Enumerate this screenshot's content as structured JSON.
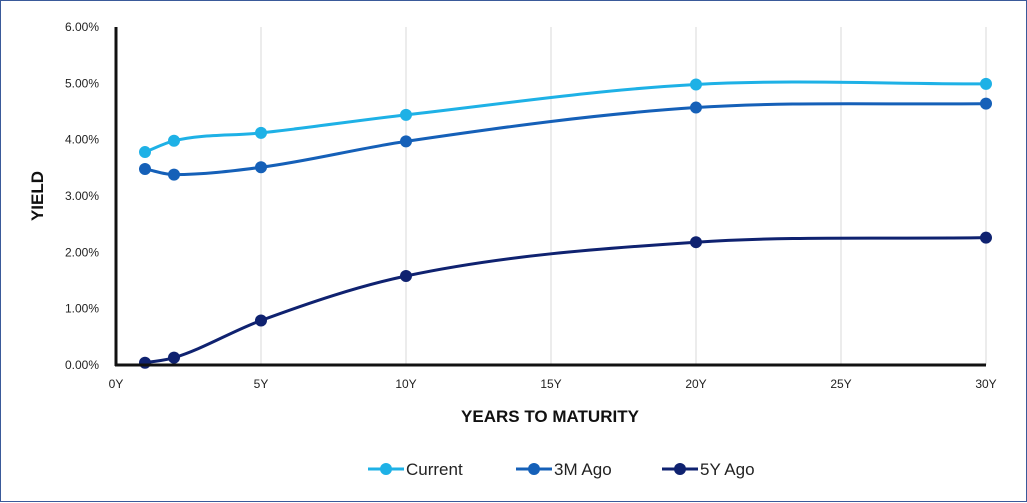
{
  "chart_data": {
    "type": "line",
    "xlabel": "YEARS TO MATURITY",
    "ylabel": "YIELD",
    "xlim": [
      0,
      30
    ],
    "ylim": [
      0,
      6
    ],
    "x_ticks": [
      0,
      5,
      10,
      15,
      20,
      25,
      30
    ],
    "x_tick_labels": [
      "0Y",
      "5Y",
      "10Y",
      "15Y",
      "20Y",
      "25Y",
      "30Y"
    ],
    "y_ticks": [
      0,
      1,
      2,
      3,
      4,
      5,
      6
    ],
    "y_tick_labels": [
      "0.00%",
      "1.00%",
      "2.00%",
      "3.00%",
      "4.00%",
      "5.00%",
      "6.00%"
    ],
    "grid": "vertical",
    "legend_position": "bottom",
    "x": [
      1,
      2,
      5,
      10,
      20,
      30
    ],
    "series": [
      {
        "name": "Current",
        "color": "#1eb1e6",
        "values": [
          3.78,
          3.98,
          4.12,
          4.44,
          4.98,
          4.99
        ]
      },
      {
        "name": "3M Ago",
        "color": "#1560b8",
        "values": [
          3.48,
          3.38,
          3.51,
          3.97,
          4.57,
          4.64
        ]
      },
      {
        "name": "5Y Ago",
        "color": "#0f2270",
        "values": [
          0.04,
          0.13,
          0.79,
          1.58,
          2.18,
          2.26
        ]
      }
    ]
  }
}
